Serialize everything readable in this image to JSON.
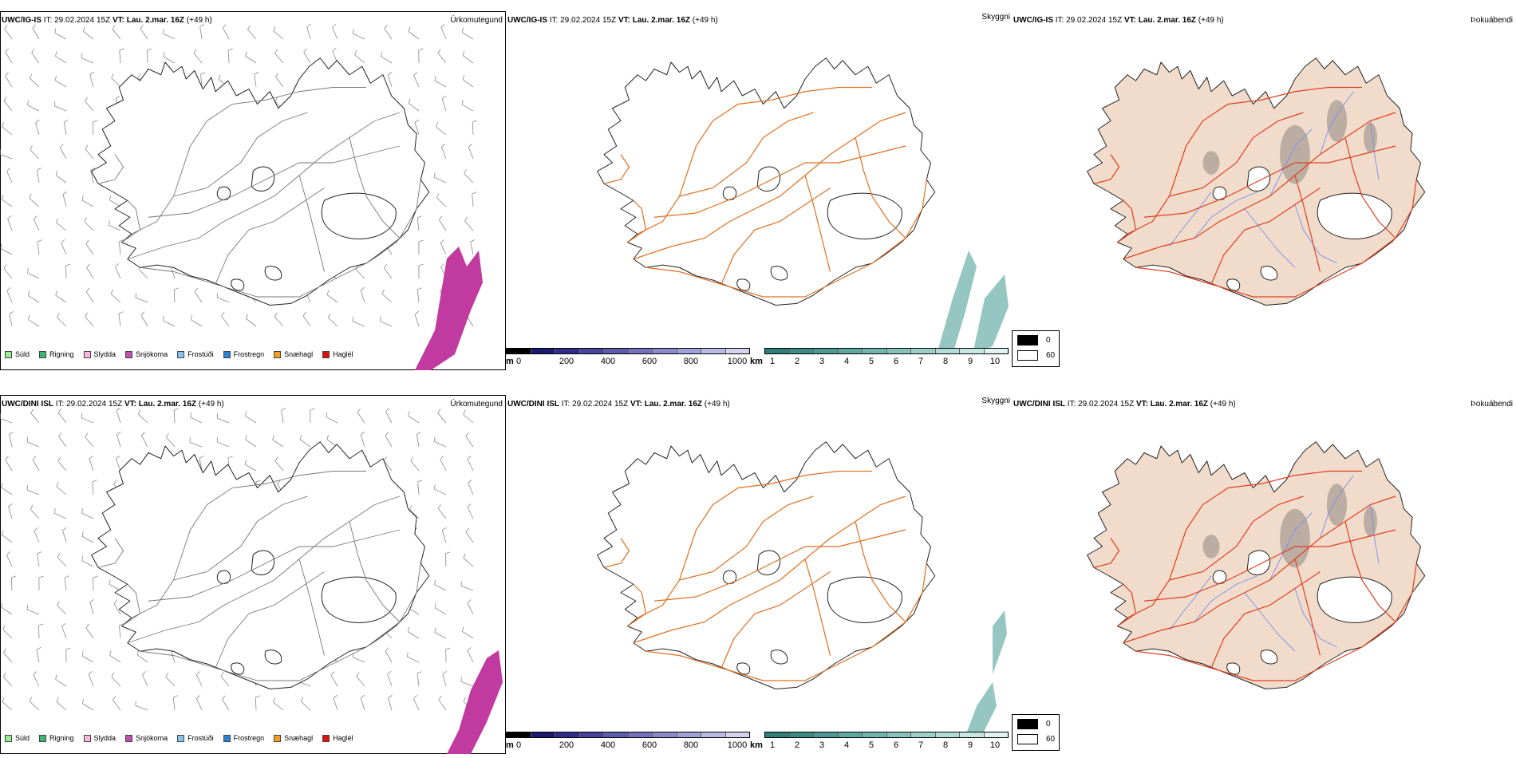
{
  "legend_items": [
    {
      "label": "Súld",
      "color": "#90ee90"
    },
    {
      "label": "Rigning",
      "color": "#3cb371"
    },
    {
      "label": "Slydda",
      "color": "#ffb6e1"
    },
    {
      "label": "Snjókoma",
      "color": "#c050b0"
    },
    {
      "label": "Frostúði",
      "color": "#87c3f0"
    },
    {
      "label": "Frostregn",
      "color": "#2f7fd0"
    },
    {
      "label": "Snæhagl",
      "color": "#f5a020"
    },
    {
      "label": "Haglél",
      "color": "#e01010"
    }
  ],
  "rows": [
    {
      "model": "UWC/IG-IS",
      "it_label": "IT:",
      "it_value": "29.02.2024 15Z",
      "vt_label": "VT:",
      "vt_value": "Lau. 2.mar. 16Z",
      "lead": "(+49 h)",
      "panels": {
        "precip": "Úrkomutegund",
        "visibility": "Skyggni",
        "fog": "Þokuábendi"
      }
    },
    {
      "model": "UWC/DINI ISL",
      "it_label": "IT:",
      "it_value": "29.02.2024 15Z",
      "vt_label": "VT:",
      "vt_value": "Lau. 2.mar. 16Z",
      "lead": "(+49 h)",
      "panels": {
        "precip": "Úrkomutegund",
        "visibility": "Skyggni",
        "fog": "Þokuábendi"
      }
    }
  ],
  "terrain_scale": {
    "unit": "m",
    "ticks": [
      "0",
      "200",
      "400",
      "600",
      "800",
      "1000"
    ],
    "colors": [
      "#000000",
      "#1a1a70",
      "#2e2e8a",
      "#45459d",
      "#5c5cad",
      "#7373bd",
      "#8a8acb",
      "#a1a1d8",
      "#babae4",
      "#d4d4ef"
    ]
  },
  "visibility_scale": {
    "unit": "km",
    "ticks": [
      "1",
      "2",
      "3",
      "4",
      "5",
      "6",
      "7",
      "8",
      "9",
      "10"
    ],
    "colors": [
      "#2e7d76",
      "#3d8c84",
      "#4d9a92",
      "#5fa8a0",
      "#72b5ae",
      "#86c2bb",
      "#9bcfc9",
      "#b1dcd7",
      "#c8e8e4",
      "#e0f3f1"
    ]
  },
  "cloud_legend": {
    "high_label": "0",
    "low_label": "60",
    "high_color": "#000000",
    "low_color": "#ffffff"
  },
  "colors": {
    "road": "#e07020",
    "road_fog": "#e04020",
    "land_fog": "#f1dccb",
    "river": "#7a8cf0",
    "precip_snow": "#c03aa0",
    "visibility_low": "#3e9890",
    "coast": "#222222"
  }
}
